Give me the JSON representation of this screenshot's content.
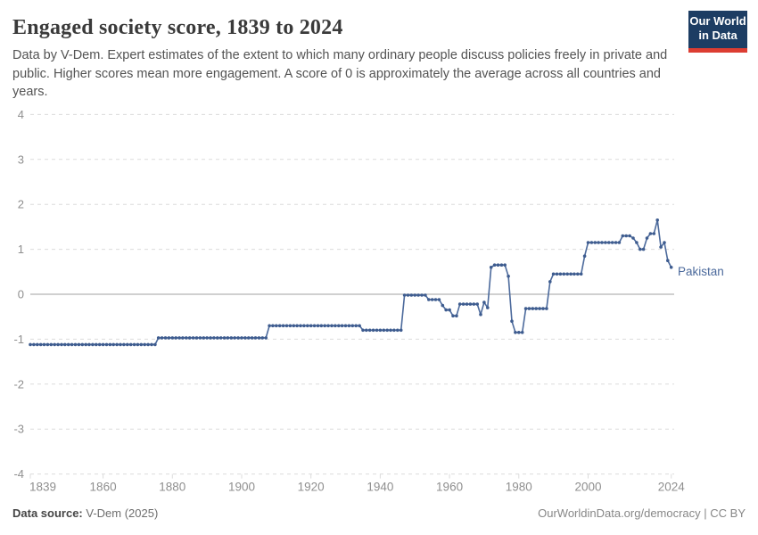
{
  "header": {
    "title": "Engaged society score, 1839 to 2024",
    "subtitle": "Data by V-Dem. Expert estimates of the extent to which many ordinary people discuss policies freely in private and public. Higher scores mean more engagement. A score of 0 is approximately the average across all countries and years.",
    "logo": {
      "line1": "Our World",
      "line2": "in Data"
    }
  },
  "footer": {
    "source_label": "Data source:",
    "source_value": " V-Dem (2025)",
    "right_text": "OurWorldinData.org/democracy | CC BY"
  },
  "colors": {
    "line": "#4c6a9c",
    "dot": "#3e5c8f",
    "entity_label": "#4c6a9c",
    "grid": "#dcdcdc",
    "zero_line": "#a0a0a0",
    "axis_text": "#8f8f8f",
    "logo_bg": "#1d3d63",
    "logo_red": "#dc3d32"
  },
  "chart_data": {
    "type": "line",
    "title": "Engaged society score, 1839 to 2024",
    "xlabel": "",
    "ylabel": "",
    "xlim": [
      1839,
      2024
    ],
    "ylim": [
      -4,
      4
    ],
    "grid": "horizontal-dashed, solid zero line",
    "legend_position": "end-of-line label",
    "yticks": [
      "4",
      "3",
      "2",
      "1",
      "0",
      "-1",
      "-2",
      "-3",
      "-4"
    ],
    "ytick_values": [
      4,
      3,
      2,
      1,
      0,
      -1,
      -2,
      -3,
      -4
    ],
    "xticks": [
      1839,
      1860,
      1880,
      1900,
      1920,
      1940,
      1960,
      1980,
      2000,
      2024
    ],
    "series": [
      {
        "name": "Pakistan",
        "segments_note": "each item is [startYear, endYear, value]; yearly points with dot markers",
        "segments": [
          [
            1839,
            1875,
            -1.12
          ],
          [
            1876,
            1907,
            -0.97
          ],
          [
            1908,
            1934,
            -0.7
          ],
          [
            1935,
            1946,
            -0.8
          ],
          [
            1947,
            1953,
            -0.02
          ],
          [
            1954,
            1957,
            -0.12
          ],
          [
            1958,
            1958,
            -0.25
          ],
          [
            1959,
            1960,
            -0.35
          ],
          [
            1961,
            1962,
            -0.48
          ],
          [
            1963,
            1968,
            -0.22
          ],
          [
            1969,
            1969,
            -0.45
          ],
          [
            1970,
            1970,
            -0.18
          ],
          [
            1971,
            1971,
            -0.3
          ],
          [
            1972,
            1972,
            0.6
          ],
          [
            1973,
            1976,
            0.65
          ],
          [
            1977,
            1977,
            0.4
          ],
          [
            1978,
            1978,
            -0.6
          ],
          [
            1979,
            1981,
            -0.85
          ],
          [
            1982,
            1988,
            -0.32
          ],
          [
            1989,
            1989,
            0.28
          ],
          [
            1990,
            1998,
            0.45
          ],
          [
            1999,
            1999,
            0.85
          ],
          [
            2000,
            2009,
            1.15
          ],
          [
            2010,
            2012,
            1.3
          ],
          [
            2013,
            2013,
            1.25
          ],
          [
            2014,
            2014,
            1.15
          ],
          [
            2015,
            2016,
            1.0
          ],
          [
            2017,
            2017,
            1.25
          ],
          [
            2018,
            2019,
            1.35
          ],
          [
            2020,
            2020,
            1.65
          ],
          [
            2021,
            2021,
            1.05
          ],
          [
            2022,
            2022,
            1.15
          ],
          [
            2023,
            2023,
            0.75
          ],
          [
            2024,
            2024,
            0.6
          ]
        ]
      }
    ]
  }
}
